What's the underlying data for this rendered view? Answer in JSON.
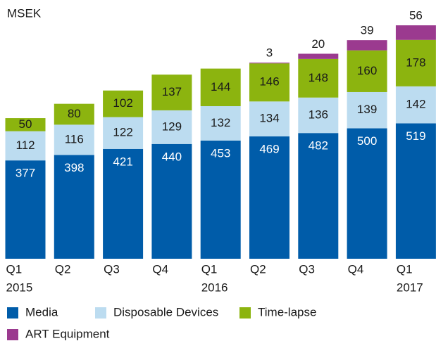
{
  "chart_data": {
    "type": "stacked-bar",
    "title": "MSEK",
    "categories": [
      "Q1",
      "Q2",
      "Q3",
      "Q4",
      "Q1",
      "Q2",
      "Q3",
      "Q4",
      "Q1"
    ],
    "x_group_labels": [
      "2015",
      null,
      null,
      null,
      "2016",
      null,
      null,
      null,
      "2017"
    ],
    "series": [
      {
        "name": "Media",
        "color": "#005ca9",
        "label_color": "#ffffff",
        "values": [
          377,
          398,
          421,
          440,
          453,
          469,
          482,
          500,
          519
        ]
      },
      {
        "name": "Disposable Devices",
        "color": "#bcdcf0",
        "label_color": "#1a1a1a",
        "values": [
          112,
          116,
          122,
          129,
          132,
          134,
          136,
          139,
          142
        ]
      },
      {
        "name": "Time-lapse",
        "color": "#8cb40f",
        "label_color": "#1a1a1a",
        "values": [
          50,
          80,
          102,
          137,
          144,
          146,
          148,
          160,
          178
        ]
      },
      {
        "name": "ART Equipment",
        "color": "#9b3a8f",
        "label_color": "#1a1a1a",
        "values": [
          null,
          null,
          null,
          null,
          null,
          3,
          20,
          39,
          56
        ]
      }
    ]
  }
}
